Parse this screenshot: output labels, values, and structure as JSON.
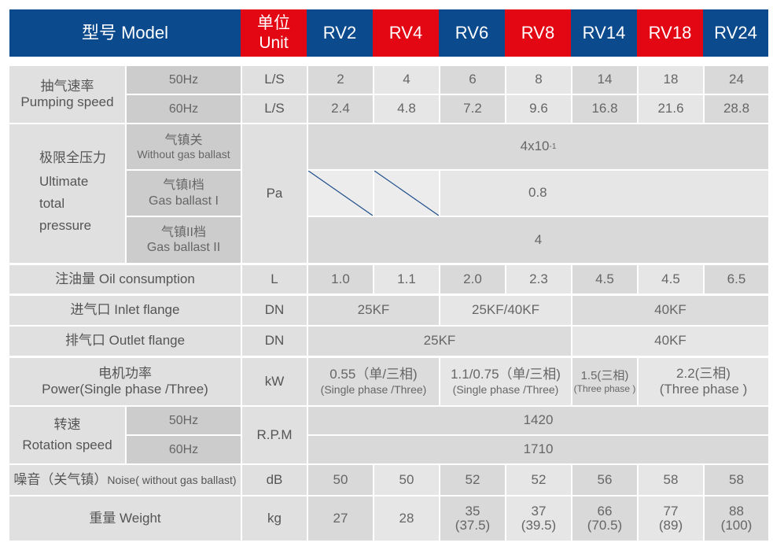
{
  "header": {
    "model": "型号 Model",
    "unit_cn": "单位",
    "unit_en": "Unit",
    "models": [
      "RV2",
      "RV4",
      "RV6",
      "RV8",
      "RV14",
      "RV18",
      "RV24"
    ]
  },
  "pumping": {
    "label_cn": "抽气速率",
    "label_en": "Pumping speed",
    "r50": {
      "freq": "50Hz",
      "unit": "L/S",
      "values": [
        "2",
        "4",
        "6",
        "8",
        "14",
        "18",
        "24"
      ]
    },
    "r60": {
      "freq": "60Hz",
      "unit": "L/S",
      "values": [
        "2.4",
        "4.8",
        "7.2",
        "9.6",
        "16.8",
        "21.6",
        "28.8"
      ]
    }
  },
  "ultimate": {
    "label_cn": "极限全压力",
    "label_en_1": "Ultimate",
    "label_en_2": "total",
    "label_en_3": "pressure",
    "unit": "Pa",
    "no_ballast_cn": "气镇关",
    "no_ballast_en": "Without gas ballast",
    "no_ballast_base": "4x10",
    "no_ballast_exp": "-1",
    "ballast1_cn": "气镇I档",
    "ballast1_en": "Gas ballast I",
    "ballast1_value": "0.8",
    "ballast2_cn": "气镇II档",
    "ballast2_en": "Gas ballast II",
    "ballast2_value": "4"
  },
  "oil": {
    "label": "注油量 Oil consumption",
    "unit": "L",
    "values": [
      "1.0",
      "1.1",
      "2.0",
      "2.3",
      "4.5",
      "4.5",
      "6.5"
    ]
  },
  "inlet": {
    "label": "进气口 Inlet flange",
    "unit": "DN",
    "v1": "25KF",
    "v2": "25KF/40KF",
    "v3": "40KF"
  },
  "outlet": {
    "label": "排气口 Outlet flange",
    "unit": "DN",
    "v1": "25KF",
    "v2": "40KF"
  },
  "power": {
    "label_cn": "电机功率",
    "label_en": "Power(Single phase /Three)",
    "unit": "kW",
    "g1_main": "0.55（单/三相)",
    "g1_sub": "(Single phase /Three)",
    "g2_main": "1.1/0.75（单/三相)",
    "g2_sub": "(Single phase /Three)",
    "g3_main": "1.5(三相)",
    "g3_sub": "(Three phase )",
    "g4_main": "2.2(三相)",
    "g4_sub": "(Three phase )"
  },
  "speed": {
    "label_cn": "转速",
    "label_en": "Rotation speed",
    "unit": "R.P.M",
    "f50": "50Hz",
    "f60": "60Hz",
    "v50": "1420",
    "v60": "1710"
  },
  "noise": {
    "label_cn": "噪音（关气镇）",
    "label_en": "Noise( without gas ballast)",
    "unit": "dB",
    "values": [
      "50",
      "50",
      "52",
      "52",
      "56",
      "58",
      "58"
    ]
  },
  "weight": {
    "label": "重量 Weight",
    "unit": "kg",
    "values": [
      "27",
      "28",
      "35",
      "37",
      "66",
      "77",
      "88"
    ],
    "sub": [
      "",
      "",
      "(37.5)",
      "(39.5)",
      "(70.5)",
      "(89)",
      "(100)"
    ]
  },
  "colors": {
    "header_blue": "#0b4a8c",
    "header_red": "#e30613",
    "diagonal": "#1f4e8c"
  }
}
